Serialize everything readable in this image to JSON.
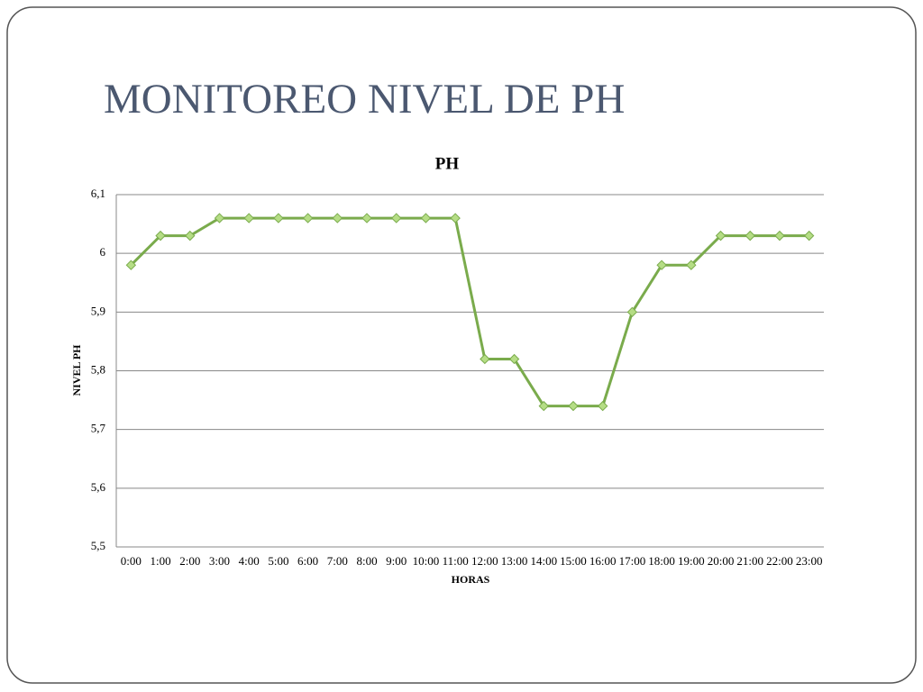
{
  "slide_title": "MONITOREO NIVEL DE PH",
  "chart_data": {
    "type": "line",
    "title": "PH",
    "x_label": "HORAS",
    "y_label": "NIVEL PH",
    "categories": [
      "0:00",
      "1:00",
      "2:00",
      "3:00",
      "4:00",
      "5:00",
      "6:00",
      "7:00",
      "8:00",
      "9:00",
      "10:00",
      "11:00",
      "12:00",
      "13:00",
      "14:00",
      "15:00",
      "16:00",
      "17:00",
      "18:00",
      "19:00",
      "20:00",
      "21:00",
      "22:00",
      "23:00"
    ],
    "series": [
      {
        "name": "PH",
        "color": "#7aab4c",
        "values": [
          5.98,
          6.03,
          6.03,
          6.06,
          6.06,
          6.06,
          6.06,
          6.06,
          6.06,
          6.06,
          6.06,
          6.06,
          5.82,
          5.82,
          5.74,
          5.74,
          5.74,
          5.9,
          5.98,
          5.98,
          6.03,
          6.03,
          6.03,
          6.03
        ]
      }
    ],
    "ylim": [
      5.5,
      6.1
    ],
    "yticks": [
      {
        "value": 5.5,
        "label": "5,5"
      },
      {
        "value": 5.6,
        "label": "5,6"
      },
      {
        "value": 5.7,
        "label": "5,7"
      },
      {
        "value": 5.8,
        "label": "5,8"
      },
      {
        "value": 5.9,
        "label": "5,9"
      },
      6,
      {
        "value": 6.1,
        "label": "6,1"
      }
    ],
    "grid": true,
    "legend": false
  }
}
